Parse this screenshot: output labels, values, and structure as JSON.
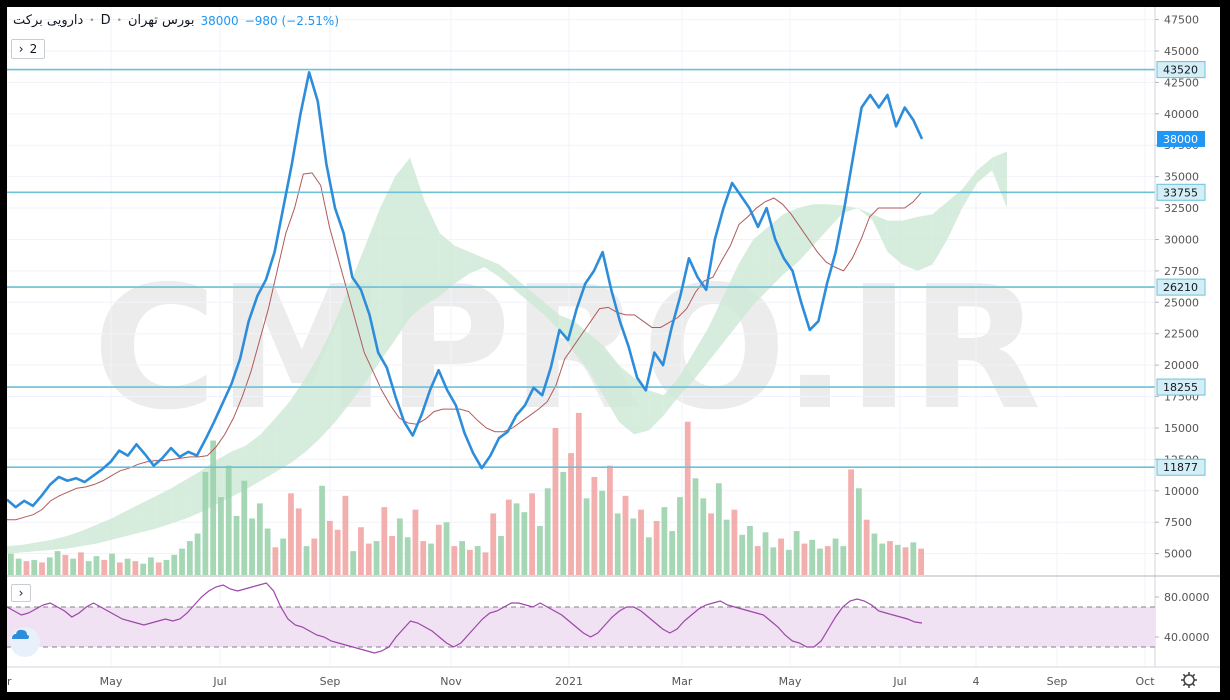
{
  "header": {
    "symbol": "دارویی برکت",
    "interval": "D",
    "exchange": "بورس تهران",
    "last": "38000",
    "change": "−980 (−2.51%)"
  },
  "indicator_toggle": {
    "count": "2"
  },
  "x_axis_labels": [
    "r",
    "May",
    "Jul",
    "Sep",
    "Nov",
    "2021",
    "Mar",
    "May",
    "Jul",
    "4",
    "Sep",
    "Oct"
  ],
  "colors": {
    "price": "#2e8ddb",
    "kijun": "#b25a5a",
    "hline": "#6cc1d9",
    "cloud_up": "#cfe9d6",
    "cloud_down": "#f6c5c5",
    "vol_up": "#9bd3ad",
    "vol_down": "#f2a5a5",
    "rsi": "#9c46a8",
    "rsi_band": "#f0e2f3"
  },
  "watermark": "CMPRO.IR",
  "chart_data": [
    {
      "type": "line",
      "title": "",
      "y_ticks": [
        5000,
        7500,
        10000,
        12500,
        15000,
        17500,
        20000,
        22500,
        25000,
        27500,
        30000,
        32500,
        35000,
        37500,
        40000,
        42500,
        45000,
        47500
      ],
      "ylim": [
        3300,
        48500
      ],
      "horizontal_levels": [
        43520,
        33755,
        26210,
        18255,
        11877
      ],
      "last_price": 38000,
      "series": [
        {
          "values": [
            9300,
            8700,
            9200,
            8800,
            9600,
            10500,
            11100,
            10800,
            11000,
            10700,
            11200,
            11700,
            12300,
            13200,
            12800,
            13700,
            12900,
            12000,
            12600,
            13400,
            12700,
            13100,
            12800,
            14100,
            15500,
            17000,
            18500,
            20500,
            23500,
            25500,
            26800,
            29000,
            32500,
            36000,
            40000,
            43300,
            41000,
            36000,
            32500,
            30500,
            27000,
            26000,
            24000,
            21000,
            19800,
            17500,
            15500,
            14400,
            16000,
            18000,
            19600,
            18000,
            16800,
            14600,
            13000,
            11800,
            12800,
            14200,
            14700,
            16000,
            16800,
            18200,
            17600,
            19800,
            22800,
            22000,
            24500,
            26500,
            27500,
            29000,
            26000,
            23500,
            21500,
            19000,
            18000,
            21000,
            20000,
            23000,
            25500,
            28500,
            27000,
            26000,
            30000,
            32500,
            34500,
            33500,
            32500,
            31000,
            32500,
            30000,
            28500,
            27500,
            25000,
            22800,
            23500,
            26500,
            29000,
            32500,
            36500,
            40500,
            41500,
            40500,
            41500,
            39000,
            40500,
            39500,
            38000
          ]
        },
        {
          "values": [
            7700,
            7700,
            7900,
            8100,
            8500,
            9200,
            9600,
            9900,
            10200,
            10300,
            10500,
            10800,
            11200,
            11600,
            11800,
            12100,
            12300,
            12400,
            12400,
            12500,
            12600,
            12700,
            12700,
            12800,
            13500,
            14500,
            15800,
            17500,
            19500,
            22000,
            24500,
            27500,
            30500,
            32500,
            35200,
            35300,
            34300,
            31000,
            28500,
            26000,
            23500,
            21000,
            19500,
            18000,
            16800,
            15800,
            15400,
            15300,
            15700,
            16300,
            16500,
            16500,
            16500,
            16300,
            15600,
            15000,
            14700,
            14700,
            15000,
            15500,
            16000,
            16500,
            17100,
            18400,
            20500,
            21500,
            22500,
            23500,
            24500,
            24600,
            24200,
            24000,
            24000,
            23500,
            23000,
            23000,
            23400,
            23800,
            24500,
            25800,
            26700,
            27000,
            28300,
            29500,
            31200,
            31800,
            32500,
            33000,
            33300,
            32800,
            32000,
            31000,
            30000,
            29000,
            28200,
            27800,
            27500,
            28500,
            30000,
            31800,
            32500,
            32500,
            32500,
            32500,
            33000,
            33800
          ]
        }
      ],
      "cloud_top": [
        5600,
        5700,
        5900,
        6100,
        6400,
        6800,
        7300,
        7800,
        8400,
        9000,
        9600,
        10200,
        10900,
        11600,
        12400,
        13100,
        13600,
        14500,
        15800,
        17200,
        19000,
        21000,
        23500,
        26500,
        29500,
        32500,
        35000,
        36500,
        33000,
        30500,
        29500,
        29000,
        28500,
        28000,
        27000,
        26000,
        25000,
        24000,
        23500,
        22500,
        21500,
        20000,
        19000,
        18000,
        17600,
        19000,
        21000,
        23000,
        25500,
        28000,
        30000,
        31000,
        32000,
        32500,
        32800,
        32800,
        32700,
        32500,
        32000,
        31500,
        31500,
        31800,
        32000,
        33000,
        34000,
        35500,
        36500,
        37000
      ],
      "cloud_bottom": [
        5000,
        5100,
        5200,
        5300,
        5400,
        5600,
        5800,
        6100,
        6400,
        6700,
        7000,
        7400,
        7800,
        8300,
        8900,
        9500,
        10100,
        10800,
        11500,
        12200,
        13100,
        14200,
        15500,
        17000,
        18600,
        20300,
        22000,
        23800,
        24800,
        25500,
        26500,
        27300,
        27800,
        27000,
        26000,
        25000,
        24000,
        22800,
        21000,
        19500,
        17500,
        15500,
        14500,
        14800,
        16000,
        17500,
        18800,
        20300,
        21800,
        23300,
        24800,
        26000,
        27200,
        28200,
        29500,
        30800,
        32100,
        32500,
        31500,
        29000,
        28000,
        27500,
        28000,
        30000,
        32500,
        34500,
        35500,
        32500
      ],
      "volume": [
        {
          "d": "up",
          "v": 5000
        },
        {
          "d": "up",
          "v": 4600
        },
        {
          "d": "down",
          "v": 4400
        },
        {
          "d": "up",
          "v": 4500
        },
        {
          "d": "down",
          "v": 4300
        },
        {
          "d": "up",
          "v": 4700
        },
        {
          "d": "up",
          "v": 5200
        },
        {
          "d": "down",
          "v": 4900
        },
        {
          "d": "up",
          "v": 4600
        },
        {
          "d": "down",
          "v": 5100
        },
        {
          "d": "up",
          "v": 4400
        },
        {
          "d": "up",
          "v": 4800
        },
        {
          "d": "down",
          "v": 4500
        },
        {
          "d": "up",
          "v": 5000
        },
        {
          "d": "down",
          "v": 4300
        },
        {
          "d": "up",
          "v": 4600
        },
        {
          "d": "down",
          "v": 4400
        },
        {
          "d": "up",
          "v": 4200
        },
        {
          "d": "up",
          "v": 4700
        },
        {
          "d": "down",
          "v": 4300
        },
        {
          "d": "up",
          "v": 4500
        },
        {
          "d": "up",
          "v": 4900
        },
        {
          "d": "up",
          "v": 5400
        },
        {
          "d": "up",
          "v": 6000
        },
        {
          "d": "up",
          "v": 6600
        },
        {
          "d": "up",
          "v": 11500
        },
        {
          "d": "up",
          "v": 14000
        },
        {
          "d": "up",
          "v": 9500
        },
        {
          "d": "up",
          "v": 12000
        },
        {
          "d": "up",
          "v": 8000
        },
        {
          "d": "up",
          "v": 10800
        },
        {
          "d": "up",
          "v": 7800
        },
        {
          "d": "up",
          "v": 9000
        },
        {
          "d": "up",
          "v": 7000
        },
        {
          "d": "down",
          "v": 5500
        },
        {
          "d": "up",
          "v": 6200
        },
        {
          "d": "down",
          "v": 9800
        },
        {
          "d": "down",
          "v": 8600
        },
        {
          "d": "up",
          "v": 5600
        },
        {
          "d": "down",
          "v": 6200
        },
        {
          "d": "up",
          "v": 10400
        },
        {
          "d": "down",
          "v": 7600
        },
        {
          "d": "down",
          "v": 6900
        },
        {
          "d": "down",
          "v": 9600
        },
        {
          "d": "up",
          "v": 5200
        },
        {
          "d": "down",
          "v": 7100
        },
        {
          "d": "down",
          "v": 5800
        },
        {
          "d": "up",
          "v": 6000
        },
        {
          "d": "down",
          "v": 8700
        },
        {
          "d": "down",
          "v": 6400
        },
        {
          "d": "up",
          "v": 7800
        },
        {
          "d": "up",
          "v": 6300
        },
        {
          "d": "down",
          "v": 8500
        },
        {
          "d": "down",
          "v": 6000
        },
        {
          "d": "up",
          "v": 5800
        },
        {
          "d": "down",
          "v": 7300
        },
        {
          "d": "up",
          "v": 7500
        },
        {
          "d": "down",
          "v": 5600
        },
        {
          "d": "up",
          "v": 6000
        },
        {
          "d": "down",
          "v": 5300
        },
        {
          "d": "up",
          "v": 5600
        },
        {
          "d": "down",
          "v": 5100
        },
        {
          "d": "down",
          "v": 8200
        },
        {
          "d": "up",
          "v": 6400
        },
        {
          "d": "down",
          "v": 9300
        },
        {
          "d": "up",
          "v": 9000
        },
        {
          "d": "up",
          "v": 8300
        },
        {
          "d": "down",
          "v": 9800
        },
        {
          "d": "up",
          "v": 7200
        },
        {
          "d": "up",
          "v": 10200
        },
        {
          "d": "down",
          "v": 15000
        },
        {
          "d": "up",
          "v": 11500
        },
        {
          "d": "down",
          "v": 13000
        },
        {
          "d": "down",
          "v": 16200
        },
        {
          "d": "up",
          "v": 9400
        },
        {
          "d": "down",
          "v": 11100
        },
        {
          "d": "up",
          "v": 10000
        },
        {
          "d": "down",
          "v": 12000
        },
        {
          "d": "up",
          "v": 8200
        },
        {
          "d": "down",
          "v": 9600
        },
        {
          "d": "up",
          "v": 7800
        },
        {
          "d": "down",
          "v": 8500
        },
        {
          "d": "up",
          "v": 6300
        },
        {
          "d": "down",
          "v": 7600
        },
        {
          "d": "up",
          "v": 8700
        },
        {
          "d": "up",
          "v": 6800
        },
        {
          "d": "up",
          "v": 9500
        },
        {
          "d": "down",
          "v": 15500
        },
        {
          "d": "up",
          "v": 11000
        },
        {
          "d": "up",
          "v": 9400
        },
        {
          "d": "down",
          "v": 8200
        },
        {
          "d": "up",
          "v": 10600
        },
        {
          "d": "up",
          "v": 7700
        },
        {
          "d": "down",
          "v": 8500
        },
        {
          "d": "up",
          "v": 6500
        },
        {
          "d": "up",
          "v": 7200
        },
        {
          "d": "down",
          "v": 5600
        },
        {
          "d": "up",
          "v": 6700
        },
        {
          "d": "up",
          "v": 5500
        },
        {
          "d": "down",
          "v": 6200
        },
        {
          "d": "up",
          "v": 5300
        },
        {
          "d": "up",
          "v": 6800
        },
        {
          "d": "down",
          "v": 5800
        },
        {
          "d": "up",
          "v": 6100
        },
        {
          "d": "up",
          "v": 5400
        },
        {
          "d": "down",
          "v": 5600
        },
        {
          "d": "up",
          "v": 6200
        },
        {
          "d": "up",
          "v": 5600
        },
        {
          "d": "down",
          "v": 11700
        },
        {
          "d": "up",
          "v": 10200
        },
        {
          "d": "down",
          "v": 7700
        },
        {
          "d": "up",
          "v": 6600
        },
        {
          "d": "up",
          "v": 5800
        },
        {
          "d": "down",
          "v": 6000
        },
        {
          "d": "up",
          "v": 5700
        },
        {
          "d": "down",
          "v": 5500
        },
        {
          "d": "up",
          "v": 5900
        },
        {
          "d": "down",
          "v": 5400
        }
      ]
    },
    {
      "type": "line",
      "title": "",
      "y_ticks": [
        40,
        80
      ],
      "y_tick_labels": [
        "40.0000",
        "80.0000"
      ],
      "ylim": [
        10,
        100
      ],
      "band": [
        30,
        70
      ],
      "series": [
        {
          "values": [
            70,
            66,
            62,
            64,
            68,
            72,
            74,
            70,
            66,
            60,
            64,
            70,
            74,
            70,
            66,
            62,
            58,
            56,
            54,
            52,
            54,
            56,
            58,
            56,
            58,
            64,
            72,
            80,
            86,
            90,
            92,
            88,
            86,
            88,
            90,
            92,
            94,
            86,
            70,
            58,
            52,
            50,
            46,
            42,
            40,
            36,
            34,
            32,
            30,
            28,
            26,
            24,
            26,
            30,
            40,
            48,
            56,
            54,
            50,
            46,
            40,
            34,
            30,
            34,
            42,
            50,
            58,
            64,
            66,
            70,
            74,
            74,
            72,
            70,
            74,
            70,
            66,
            62,
            56,
            50,
            44,
            40,
            44,
            52,
            60,
            66,
            70,
            70,
            66,
            60,
            54,
            48,
            44,
            48,
            56,
            62,
            68,
            72,
            74,
            76,
            72,
            70,
            68,
            66,
            64,
            62,
            56,
            50,
            42,
            36,
            34,
            30,
            30,
            36,
            48,
            60,
            70,
            76,
            78,
            76,
            72,
            66,
            64,
            62,
            60,
            58,
            55,
            54
          ]
        }
      ]
    }
  ]
}
